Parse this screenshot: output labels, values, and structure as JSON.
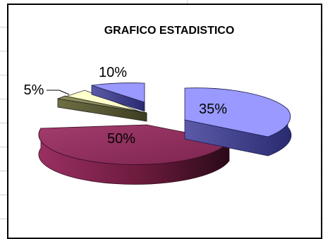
{
  "chart_data": {
    "type": "pie",
    "title": "GRAFICO ESTADISTICO",
    "slices": [
      {
        "label": "35%",
        "value": 35,
        "color": "#9999ff"
      },
      {
        "label": "50%",
        "value": 50,
        "color": "#993366"
      },
      {
        "label": "5%",
        "value": 5,
        "color": "#ffffcc"
      },
      {
        "label": "10%",
        "value": 10,
        "color": "#8c8c5a"
      }
    ],
    "style": "3d-exploded",
    "legend": "none"
  }
}
